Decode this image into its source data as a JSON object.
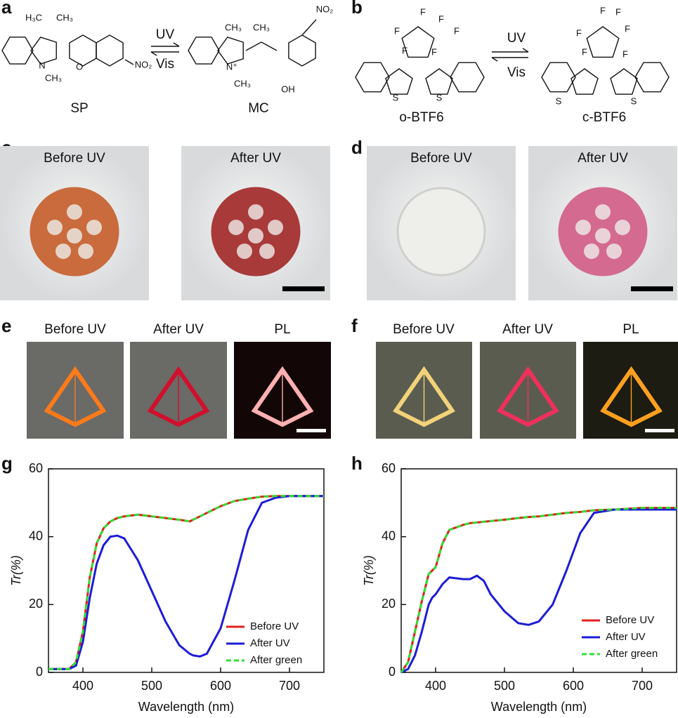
{
  "panel_labels": [
    "a",
    "b",
    "c",
    "d",
    "e",
    "f",
    "g",
    "h"
  ],
  "scheme_a": {
    "reactant": "SP",
    "product": "MC",
    "forward": "UV",
    "back": "Vis",
    "atoms": [
      "H₃C",
      "CH₃",
      "N",
      "CH₃",
      "O",
      "NO₂",
      "CH₃",
      "CH₃",
      "N⁺",
      "CH₃",
      "NO₂",
      "OH"
    ]
  },
  "scheme_b": {
    "reactant": "o-BTF6",
    "product": "c-BTF6",
    "forward": "UV",
    "back": "Vis",
    "atoms": [
      "F",
      "F",
      "F",
      "F",
      "F",
      "F",
      "S",
      "S",
      "F",
      "F",
      "F",
      "F",
      "F",
      "F",
      "S",
      "S"
    ]
  },
  "photos_c": [
    "Before UV",
    "After UV"
  ],
  "photos_d": [
    "Before UV",
    "After UV"
  ],
  "photos_e": [
    "Before UV",
    "After UV",
    "PL"
  ],
  "photos_f": [
    "Before UV",
    "After UV",
    "PL"
  ],
  "chart_data": [
    {
      "type": "line",
      "xlabel": "Wavelength (nm)",
      "ylabel": "Tr(%)",
      "x": [
        350,
        380,
        390,
        400,
        410,
        420,
        430,
        440,
        450,
        460,
        480,
        500,
        520,
        540,
        555,
        560,
        570,
        580,
        600,
        620,
        640,
        660,
        680,
        700,
        750
      ],
      "series": [
        {
          "name": "Before UV",
          "color": "#e02020",
          "dashed": false,
          "values": [
            1,
            1,
            3,
            12,
            28,
            38,
            42.5,
            44.5,
            45.5,
            46,
            46.5,
            46,
            45.5,
            45,
            44.5,
            45,
            46,
            47,
            49,
            50.5,
            51.2,
            51.8,
            52,
            52,
            52
          ]
        },
        {
          "name": "After UV",
          "color": "#1c1cd6",
          "dashed": false,
          "values": [
            1,
            1,
            2,
            9,
            22,
            32,
            37.5,
            40,
            40.3,
            39.5,
            33,
            24,
            15,
            8,
            5.5,
            5,
            4.7,
            5.5,
            13,
            27,
            42,
            50,
            51.5,
            52,
            52
          ]
        },
        {
          "name": "After green",
          "color": "#33dd33",
          "dashed": true,
          "values": [
            1,
            1,
            3,
            12,
            28,
            38,
            42.5,
            44.5,
            45.5,
            46,
            46.5,
            46,
            45.5,
            45,
            44.5,
            45,
            46,
            47,
            49,
            50.5,
            51.2,
            51.8,
            52,
            52,
            52
          ]
        }
      ],
      "xlim": [
        350,
        750
      ],
      "ylim": [
        0,
        60
      ],
      "xticks": [
        400,
        500,
        600,
        700
      ],
      "yticks": [
        0,
        20,
        40,
        60
      ]
    },
    {
      "type": "line",
      "xlabel": "Wavelength (nm)",
      "ylabel": "Tr(%)",
      "x": [
        350,
        360,
        370,
        380,
        390,
        395,
        400,
        410,
        420,
        440,
        450,
        460,
        470,
        480,
        500,
        520,
        535,
        550,
        570,
        590,
        610,
        630,
        660,
        700,
        750
      ],
      "series": [
        {
          "name": "Before UV",
          "color": "#e02020",
          "dashed": false,
          "values": [
            0,
            3,
            12,
            21,
            29,
            30,
            31,
            38,
            42,
            43.5,
            44,
            44.2,
            44.4,
            44.6,
            45,
            45.5,
            45.8,
            46,
            46.5,
            47,
            47.3,
            47.8,
            48,
            48.5,
            48.5
          ]
        },
        {
          "name": "After UV",
          "color": "#1c1cd6",
          "dashed": false,
          "values": [
            0,
            1,
            5,
            12,
            20,
            22,
            23,
            26,
            28,
            27.5,
            27.5,
            28.5,
            27,
            23,
            18,
            14.5,
            14,
            15,
            20,
            30,
            41,
            47,
            48,
            48,
            48
          ]
        },
        {
          "name": "After green",
          "color": "#33dd33",
          "dashed": true,
          "values": [
            0,
            3,
            12,
            21,
            29,
            30,
            31,
            38,
            42,
            43.5,
            44,
            44.2,
            44.4,
            44.6,
            45,
            45.5,
            45.8,
            46,
            46.5,
            47,
            47.3,
            47.8,
            48,
            48.5,
            48.5
          ]
        }
      ],
      "xlim": [
        350,
        750
      ],
      "ylim": [
        0,
        60
      ],
      "xticks": [
        400,
        500,
        600,
        700
      ],
      "yticks": [
        0,
        20,
        40,
        60
      ]
    }
  ]
}
